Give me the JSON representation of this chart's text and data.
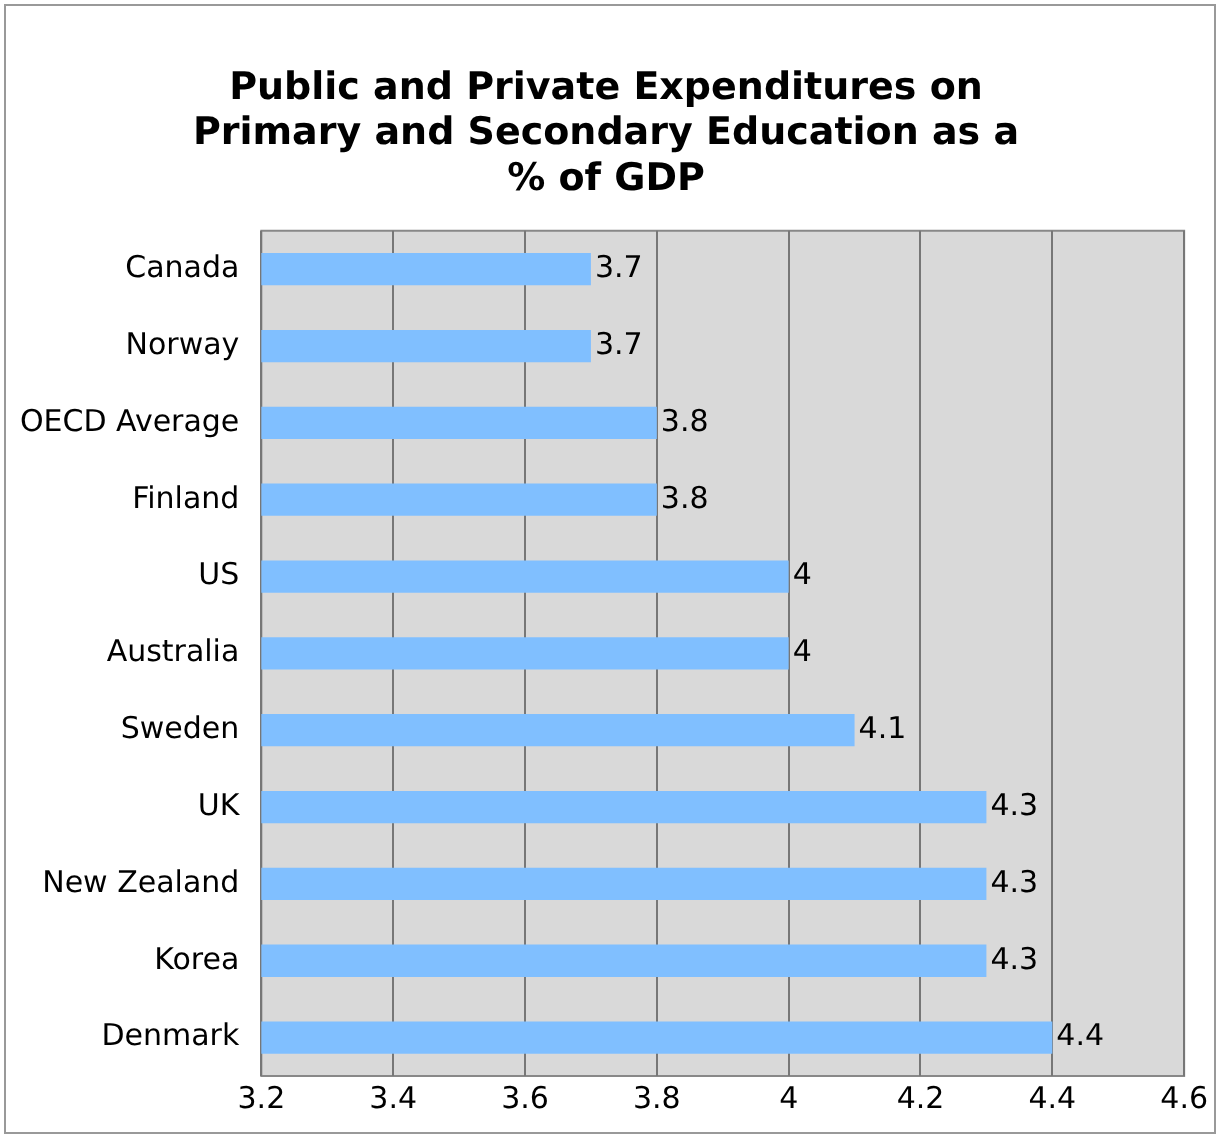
{
  "chart_data": {
    "type": "bar",
    "orientation": "horizontal",
    "title": "Public and Private Expenditures on Primary and Secondary Education as a % of GDP",
    "categories": [
      "Canada",
      "Norway",
      "OECD Average",
      "Finland",
      "US",
      "Australia",
      "Sweden",
      "UK",
      "New Zealand",
      "Korea",
      "Denmark"
    ],
    "values": [
      3.7,
      3.7,
      3.8,
      3.8,
      4,
      4,
      4.1,
      4.3,
      4.3,
      4.3,
      4.4
    ],
    "color": "#80bfff",
    "xlim": [
      3.2,
      4.6
    ],
    "xticks": [
      3.2,
      3.4,
      3.6,
      3.8,
      4,
      4.2,
      4.4,
      4.6
    ],
    "grid": "x",
    "legend": false,
    "data_labels": true
  }
}
